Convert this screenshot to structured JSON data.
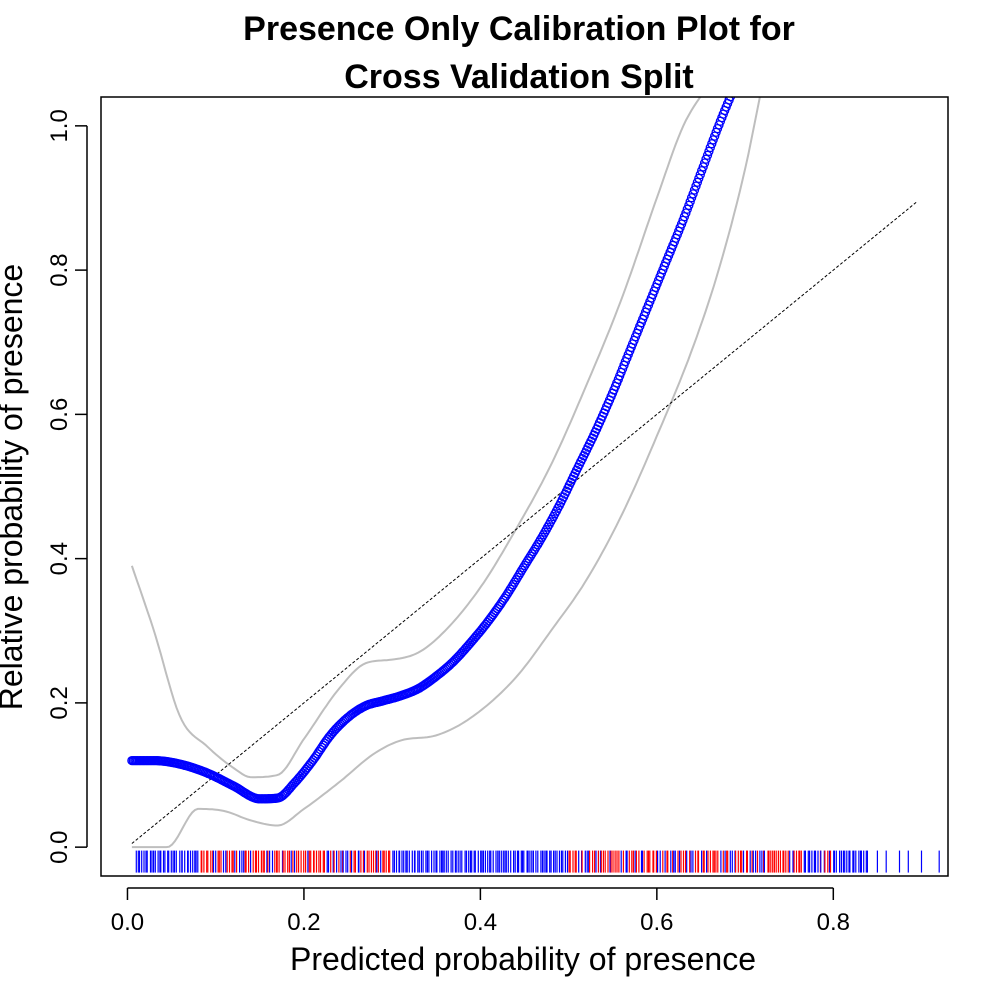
{
  "chart_data": {
    "type": "scatter",
    "title_lines": [
      "Presence Only Calibration Plot for",
      "Cross Validation Split"
    ],
    "xlabel": "Predicted probability of presence",
    "ylabel": "Relative probability of presence",
    "xlim": [
      -0.03,
      0.93
    ],
    "ylim": [
      -0.04,
      1.04
    ],
    "xticks": [
      0.0,
      0.2,
      0.4,
      0.6,
      0.8
    ],
    "xtick_labels": [
      "0.0",
      "0.2",
      "0.4",
      "0.6",
      "0.8"
    ],
    "yticks": [
      0.0,
      0.2,
      0.4,
      0.6,
      0.8,
      1.0
    ],
    "ytick_labels": [
      "0.0",
      "0.2",
      "0.4",
      "0.6",
      "0.8",
      "1.0"
    ],
    "grid": false,
    "colors": {
      "calibration_points": "#0000ff",
      "confidence_band": "#bebebe",
      "reference_line": "#000000",
      "rug_presence": "#ff0000",
      "rug_background": "#0000ff"
    },
    "series": [
      {
        "kind": "points",
        "x": [
          0.005,
          0.03,
          0.06,
          0.09,
          0.12,
          0.15,
          0.17,
          0.19,
          0.21,
          0.23,
          0.25,
          0.27,
          0.29,
          0.31,
          0.33,
          0.35,
          0.37,
          0.39,
          0.41,
          0.43,
          0.45,
          0.47,
          0.49,
          0.51,
          0.53,
          0.55,
          0.57,
          0.59,
          0.61,
          0.63,
          0.65,
          0.67,
          0.69
        ],
        "y": [
          0.12,
          0.12,
          0.115,
          0.103,
          0.085,
          0.067,
          0.068,
          0.09,
          0.12,
          0.155,
          0.18,
          0.196,
          0.203,
          0.21,
          0.22,
          0.237,
          0.258,
          0.285,
          0.315,
          0.35,
          0.39,
          0.43,
          0.475,
          0.525,
          0.575,
          0.63,
          0.69,
          0.75,
          0.81,
          0.87,
          0.935,
          1.0,
          1.06
        ]
      },
      {
        "kind": "line",
        "x": [
          0.005,
          0.03,
          0.06,
          0.09,
          0.12,
          0.14,
          0.17,
          0.2,
          0.24,
          0.27,
          0.3,
          0.33,
          0.36,
          0.4,
          0.44,
          0.48,
          0.52,
          0.56,
          0.6,
          0.63,
          0.66
        ],
        "y": [
          0.39,
          0.3,
          0.18,
          0.14,
          0.11,
          0.097,
          0.1,
          0.15,
          0.22,
          0.255,
          0.26,
          0.27,
          0.3,
          0.36,
          0.44,
          0.53,
          0.64,
          0.76,
          0.9,
          1.0,
          1.06
        ]
      },
      {
        "kind": "line",
        "x": [
          0.005,
          0.045,
          0.08,
          0.11,
          0.14,
          0.17,
          0.2,
          0.24,
          0.28,
          0.31,
          0.35,
          0.39,
          0.44,
          0.48,
          0.52,
          0.56,
          0.6,
          0.64,
          0.67,
          0.7,
          0.72
        ],
        "y": [
          0.0,
          0.0,
          0.053,
          0.05,
          0.037,
          0.03,
          0.053,
          0.09,
          0.13,
          0.148,
          0.155,
          0.18,
          0.235,
          0.3,
          0.37,
          0.46,
          0.57,
          0.69,
          0.8,
          0.94,
          1.06
        ]
      },
      {
        "kind": "reference",
        "x": [
          0.005,
          0.895
        ],
        "y": [
          0.005,
          0.895
        ]
      }
    ],
    "rug": {
      "y": -0.02,
      "presence_ranges": [
        [
          0.08,
          0.3
        ],
        [
          0.5,
          0.8
        ]
      ],
      "background_range": [
        0.01,
        0.84
      ],
      "background_sparse_x": [
        0.85,
        0.86,
        0.875,
        0.885,
        0.9,
        0.92,
        0.935
      ]
    }
  }
}
